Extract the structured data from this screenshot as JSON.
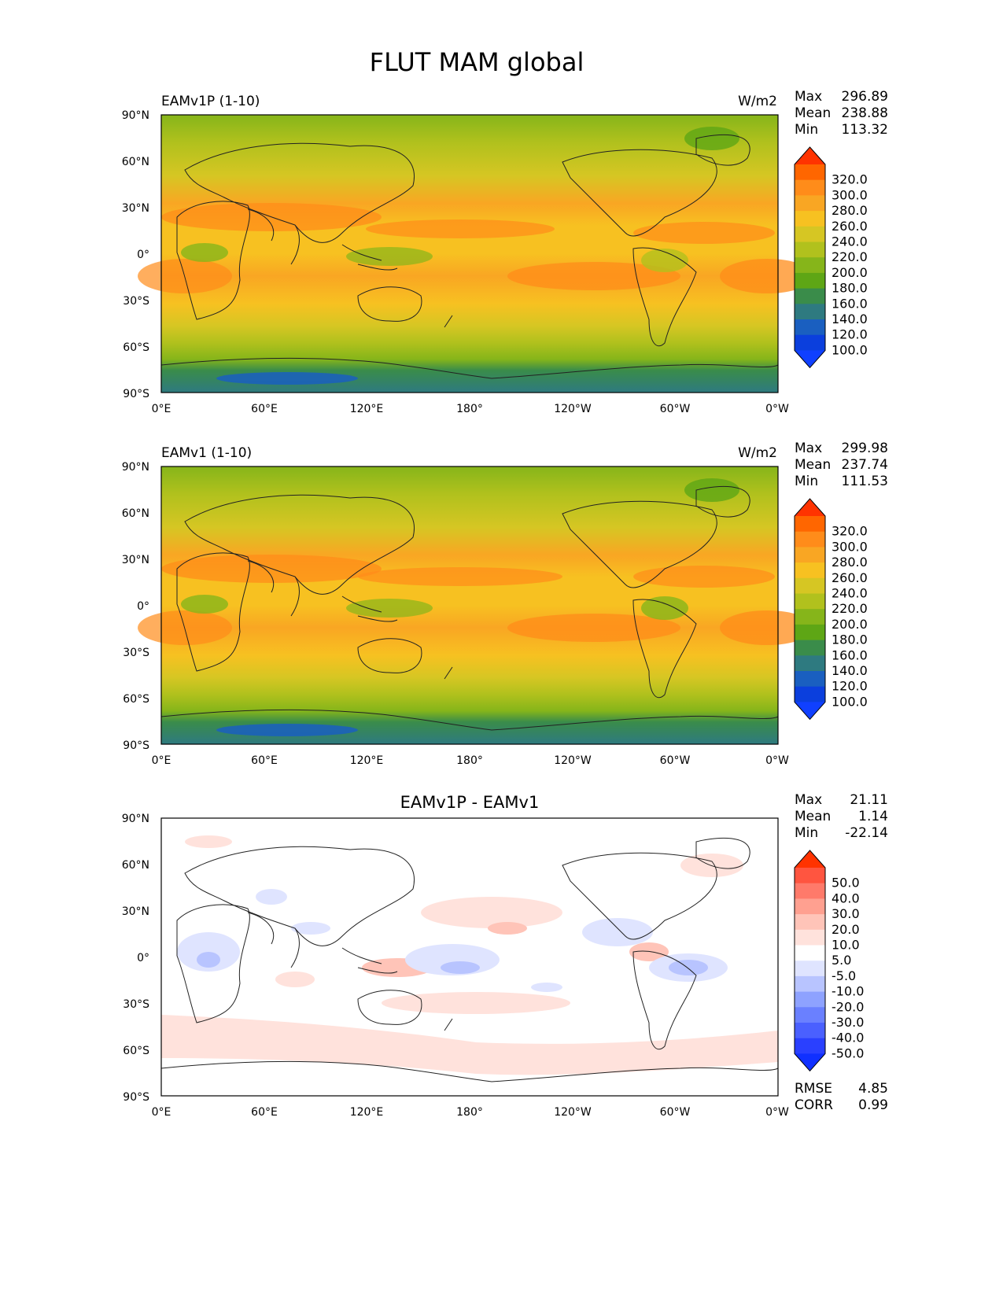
{
  "title": "FLUT MAM global",
  "lon_ticks": [
    "0°E",
    "60°E",
    "120°E",
    "180°",
    "120°W",
    "60°W",
    "0°W"
  ],
  "lat_ticks": [
    "90°N",
    "60°N",
    "30°N",
    "0°",
    "30°S",
    "60°S",
    "90°S"
  ],
  "panels": [
    {
      "name": "test",
      "left_title": "EAMv1P (1-10)",
      "center_title": "",
      "right_title": "W/m2",
      "stats": {
        "max_label": "Max",
        "max": "296.89",
        "mean_label": "Mean",
        "mean": "238.88",
        "min_label": "Min",
        "min": "113.32"
      },
      "colorbar_levels": [
        "320.0",
        "300.0",
        "280.0",
        "260.0",
        "240.0",
        "220.0",
        "200.0",
        "180.0",
        "160.0",
        "140.0",
        "120.0",
        "100.0"
      ],
      "colorbar_colors": [
        "#ff3300",
        "#ff6600",
        "#ff8c1a",
        "#f9a623",
        "#f7c121",
        "#d6c623",
        "#b1c11d",
        "#86b51a",
        "#5ea615",
        "#3a8c4a",
        "#2e7a80",
        "#1a5fc0",
        "#0b3fdd",
        "#1040ff"
      ]
    },
    {
      "name": "reference",
      "left_title": "EAMv1 (1-10)",
      "center_title": "",
      "right_title": "W/m2",
      "stats": {
        "max_label": "Max",
        "max": "299.98",
        "mean_label": "Mean",
        "mean": "237.74",
        "min_label": "Min",
        "min": "111.53"
      },
      "colorbar_levels": [
        "320.0",
        "300.0",
        "280.0",
        "260.0",
        "240.0",
        "220.0",
        "200.0",
        "180.0",
        "160.0",
        "140.0",
        "120.0",
        "100.0"
      ],
      "colorbar_colors": [
        "#ff3300",
        "#ff6600",
        "#ff8c1a",
        "#f9a623",
        "#f7c121",
        "#d6c623",
        "#b1c11d",
        "#86b51a",
        "#5ea615",
        "#3a8c4a",
        "#2e7a80",
        "#1a5fc0",
        "#0b3fdd",
        "#1040ff"
      ]
    },
    {
      "name": "difference",
      "left_title": "",
      "center_title": "EAMv1P - EAMv1",
      "right_title": "",
      "stats": {
        "max_label": "Max",
        "max": "21.11",
        "mean_label": "Mean",
        "mean": "1.14",
        "min_label": "Min",
        "min": "-22.14"
      },
      "colorbar_levels": [
        "50.0",
        "40.0",
        "30.0",
        "20.0",
        "10.0",
        "5.0",
        "-5.0",
        "-10.0",
        "-20.0",
        "-30.0",
        "-40.0",
        "-50.0"
      ],
      "colorbar_colors": [
        "#ff3300",
        "#ff5540",
        "#ff7a6a",
        "#ffa090",
        "#ffc4b8",
        "#ffe2dc",
        "#ffffff",
        "#dfe4ff",
        "#b8c4ff",
        "#8ea2ff",
        "#6a80ff",
        "#4a60ff",
        "#2a40ff",
        "#1030ff"
      ],
      "rmse_label": "RMSE",
      "rmse": "4.85",
      "corr_label": "CORR",
      "corr": "0.99"
    }
  ]
}
